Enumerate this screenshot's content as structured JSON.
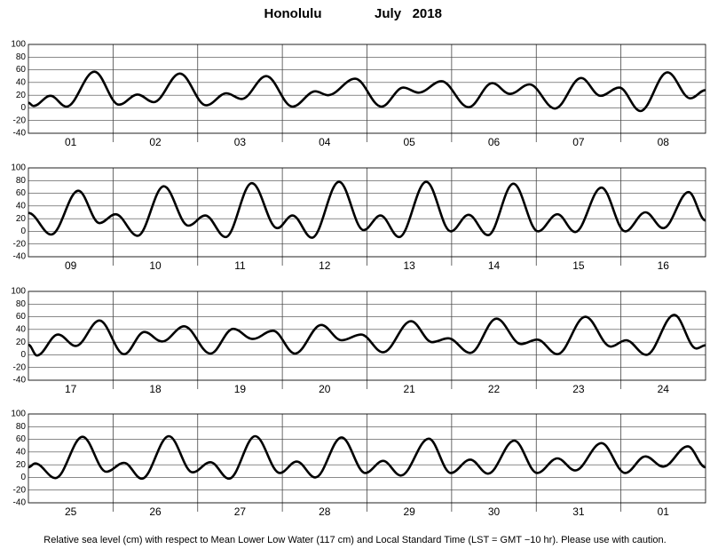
{
  "title": "Honolulu",
  "period": "July   2018",
  "footnote": "Relative sea level (cm) with respect to Mean Lower Low Water (117 cm) and Local Standard Time (LST = GMT −10 hr). Please use with caution.",
  "chart_data": [
    {
      "type": "line",
      "categories": [
        "01",
        "02",
        "03",
        "04",
        "05",
        "06",
        "07",
        "08"
      ],
      "xlim": [
        0,
        8
      ],
      "ylim": [
        -40,
        100
      ],
      "yticks": [
        -40,
        -20,
        0,
        20,
        40,
        60,
        80,
        100
      ],
      "grid": true,
      "color": "#000000",
      "x": [
        0,
        0.06,
        0.26,
        0.45,
        0.78,
        1.07,
        1.29,
        1.48,
        1.79,
        2.1,
        2.34,
        2.52,
        2.81,
        3.12,
        3.39,
        3.54,
        3.86,
        4.17,
        4.43,
        4.61,
        4.88,
        5.2,
        5.48,
        5.69,
        5.92,
        6.22,
        6.53,
        6.76,
        6.98,
        7.23,
        7.55,
        7.82,
        8
      ],
      "values": [
        8,
        3,
        19,
        2,
        57,
        5,
        21,
        9,
        54,
        4,
        23,
        14,
        50,
        2,
        26,
        20,
        46,
        2,
        32,
        24,
        42,
        1,
        39,
        22,
        37,
        -1,
        47,
        19,
        32,
        -5,
        56,
        15,
        28
      ]
    },
    {
      "type": "line",
      "categories": [
        "09",
        "10",
        "11",
        "12",
        "13",
        "14",
        "15",
        "16"
      ],
      "xlim": [
        0,
        8
      ],
      "ylim": [
        -40,
        100
      ],
      "yticks": [
        -40,
        -20,
        0,
        20,
        40,
        60,
        80,
        100
      ],
      "grid": true,
      "color": "#000000",
      "x": [
        0,
        0.27,
        0.59,
        0.84,
        1.03,
        1.29,
        1.6,
        1.89,
        2.09,
        2.33,
        2.64,
        2.94,
        3.12,
        3.35,
        3.67,
        3.96,
        4.16,
        4.38,
        4.7,
        4.99,
        5.2,
        5.43,
        5.73,
        6.02,
        6.25,
        6.46,
        6.77,
        7.05,
        7.29,
        7.5,
        7.8,
        8
      ],
      "values": [
        29,
        -5,
        64,
        13,
        27,
        -7,
        71,
        9,
        25,
        -9,
        76,
        5,
        25,
        -10,
        78,
        2,
        25,
        -9,
        78,
        0,
        26,
        -6,
        75,
        0,
        27,
        -1,
        69,
        0,
        30,
        5,
        62,
        17
      ]
    },
    {
      "type": "line",
      "categories": [
        "17",
        "18",
        "19",
        "20",
        "21",
        "22",
        "23",
        "24"
      ],
      "xlim": [
        0,
        8
      ],
      "ylim": [
        -40,
        100
      ],
      "yticks": [
        -40,
        -20,
        0,
        20,
        40,
        60,
        80,
        100
      ],
      "grid": true,
      "color": "#000000",
      "x": [
        0,
        0.1,
        0.35,
        0.56,
        0.84,
        1.13,
        1.37,
        1.58,
        1.84,
        2.15,
        2.42,
        2.65,
        2.89,
        3.15,
        3.46,
        3.7,
        3.93,
        4.19,
        4.52,
        4.77,
        4.96,
        5.22,
        5.53,
        5.82,
        6.01,
        6.25,
        6.58,
        6.88,
        7.06,
        7.3,
        7.63,
        7.89,
        8
      ],
      "values": [
        16,
        -1,
        32,
        14,
        54,
        1,
        36,
        21,
        45,
        2,
        41,
        25,
        38,
        2,
        47,
        23,
        32,
        4,
        53,
        20,
        26,
        3,
        57,
        17,
        24,
        1,
        60,
        13,
        23,
        0,
        63,
        10,
        15
      ]
    },
    {
      "type": "line",
      "categories": [
        "25",
        "26",
        "27",
        "28",
        "29",
        "30",
        "31",
        "01"
      ],
      "xlim": [
        0,
        8
      ],
      "ylim": [
        -40,
        100
      ],
      "yticks": [
        -40,
        -20,
        0,
        20,
        40,
        60,
        80,
        100
      ],
      "grid": true,
      "color": "#000000",
      "x": [
        0,
        0.08,
        0.32,
        0.64,
        0.92,
        1.13,
        1.34,
        1.66,
        1.94,
        2.15,
        2.37,
        2.68,
        2.97,
        3.17,
        3.39,
        3.7,
        3.98,
        4.19,
        4.4,
        4.73,
        4.99,
        5.22,
        5.43,
        5.74,
        6.01,
        6.25,
        6.46,
        6.77,
        7.05,
        7.29,
        7.5,
        7.79,
        8
      ],
      "values": [
        16,
        22,
        -1,
        64,
        9,
        23,
        -2,
        65,
        8,
        24,
        -2,
        65,
        7,
        25,
        0,
        63,
        7,
        26,
        3,
        61,
        7,
        28,
        6,
        58,
        7,
        30,
        11,
        54,
        7,
        33,
        17,
        49,
        16
      ]
    }
  ]
}
